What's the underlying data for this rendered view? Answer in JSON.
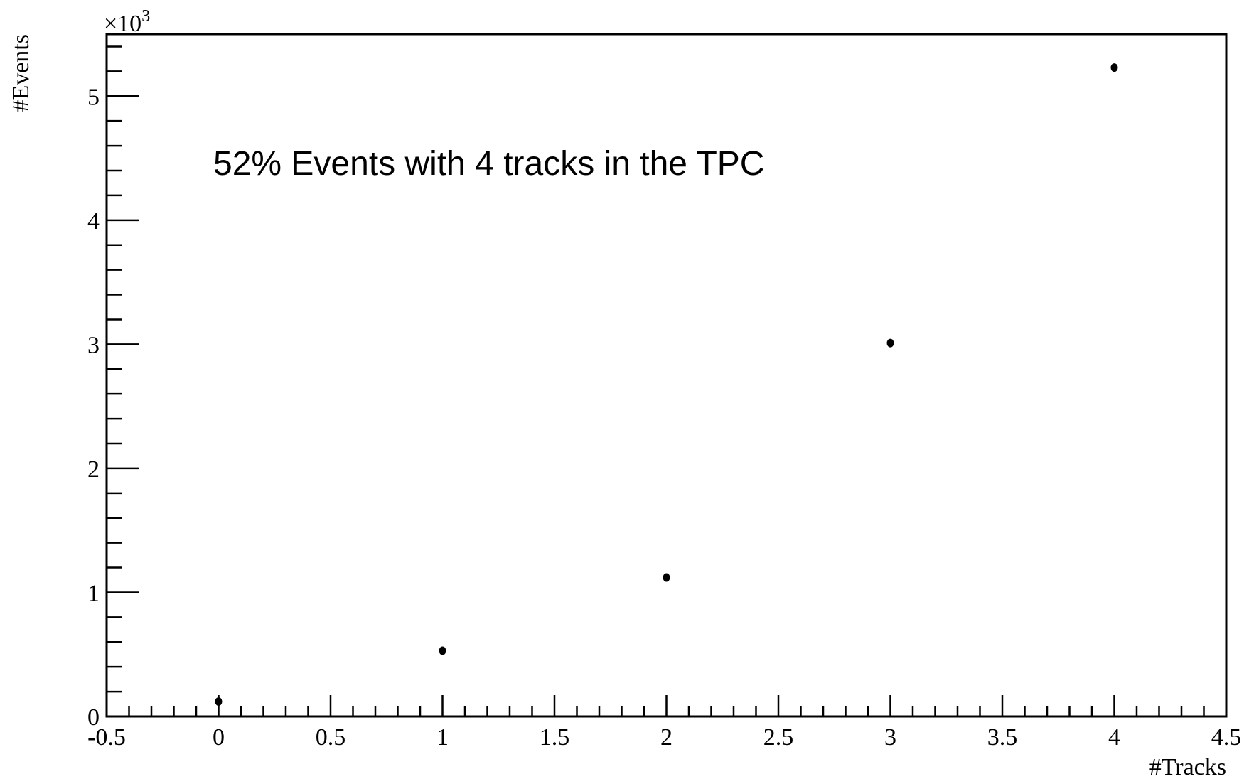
{
  "chart_data": {
    "type": "scatter",
    "title": "",
    "xlabel": "#Tracks",
    "ylabel": "#Events",
    "y_multiplier_label": "×10",
    "y_multiplier_exponent": "3",
    "annotation": "52% Events with 4 tracks in the TPC",
    "xlim": [
      -0.5,
      4.5
    ],
    "ylim": [
      0,
      5.5
    ],
    "x_ticks": [
      "-0.5",
      "0",
      "0.5",
      "1",
      "1.5",
      "2",
      "2.5",
      "3",
      "3.5",
      "4",
      "4.5"
    ],
    "y_ticks": [
      "0",
      "1",
      "2",
      "3",
      "4",
      "5"
    ],
    "grid": false,
    "legend": "none",
    "marker_color": "#000000",
    "series": [
      {
        "x": [
          0,
          1,
          2,
          3,
          4
        ],
        "y": [
          0.12,
          0.53,
          1.12,
          3.01,
          5.23
        ]
      }
    ]
  }
}
